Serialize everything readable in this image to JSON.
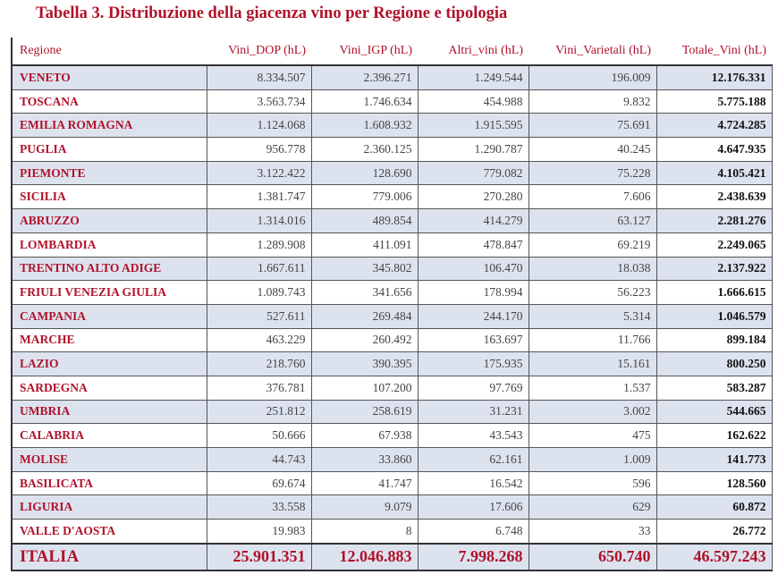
{
  "title": "Tabella 3. Distribuzione della giacenza vino per Regione e tipologia",
  "headers": [
    "Regione",
    "Vini_DOP (hL)",
    "Vini_IGP (hL)",
    "Altri_vini (hL)",
    "Vini_Varietali (hL)",
    "Totale_Vini (hL)"
  ],
  "rows": [
    [
      "VENETO",
      "8.334.507",
      "2.396.271",
      "1.249.544",
      "196.009",
      "12.176.331"
    ],
    [
      "TOSCANA",
      "3.563.734",
      "1.746.634",
      "454.988",
      "9.832",
      "5.775.188"
    ],
    [
      "EMILIA ROMAGNA",
      "1.124.068",
      "1.608.932",
      "1.915.595",
      "75.691",
      "4.724.285"
    ],
    [
      "PUGLIA",
      "956.778",
      "2.360.125",
      "1.290.787",
      "40.245",
      "4.647.935"
    ],
    [
      "PIEMONTE",
      "3.122.422",
      "128.690",
      "779.082",
      "75.228",
      "4.105.421"
    ],
    [
      "SICILIA",
      "1.381.747",
      "779.006",
      "270.280",
      "7.606",
      "2.438.639"
    ],
    [
      "ABRUZZO",
      "1.314.016",
      "489.854",
      "414.279",
      "63.127",
      "2.281.276"
    ],
    [
      "LOMBARDIA",
      "1.289.908",
      "411.091",
      "478.847",
      "69.219",
      "2.249.065"
    ],
    [
      "TRENTINO ALTO ADIGE",
      "1.667.611",
      "345.802",
      "106.470",
      "18.038",
      "2.137.922"
    ],
    [
      "FRIULI VENEZIA GIULIA",
      "1.089.743",
      "341.656",
      "178.994",
      "56.223",
      "1.666.615"
    ],
    [
      "CAMPANIA",
      "527.611",
      "269.484",
      "244.170",
      "5.314",
      "1.046.579"
    ],
    [
      "MARCHE",
      "463.229",
      "260.492",
      "163.697",
      "11.766",
      "899.184"
    ],
    [
      "LAZIO",
      "218.760",
      "390.395",
      "175.935",
      "15.161",
      "800.250"
    ],
    [
      "SARDEGNA",
      "376.781",
      "107.200",
      "97.769",
      "1.537",
      "583.287"
    ],
    [
      "UMBRIA",
      "251.812",
      "258.619",
      "31.231",
      "3.002",
      "544.665"
    ],
    [
      "CALABRIA",
      "50.666",
      "67.938",
      "43.543",
      "475",
      "162.622"
    ],
    [
      "MOLISE",
      "44.743",
      "33.860",
      "62.161",
      "1.009",
      "141.773"
    ],
    [
      "BASILICATA",
      "69.674",
      "41.747",
      "16.542",
      "596",
      "128.560"
    ],
    [
      "LIGURIA",
      "33.558",
      "9.079",
      "17.606",
      "629",
      "60.872"
    ],
    [
      "VALLE D'AOSTA",
      "19.983",
      "8",
      "6.748",
      "33",
      "26.772"
    ]
  ],
  "total": [
    "ITALIA",
    "25.901.351",
    "12.046.883",
    "7.998.268",
    "650.740",
    "46.597.243"
  ]
}
